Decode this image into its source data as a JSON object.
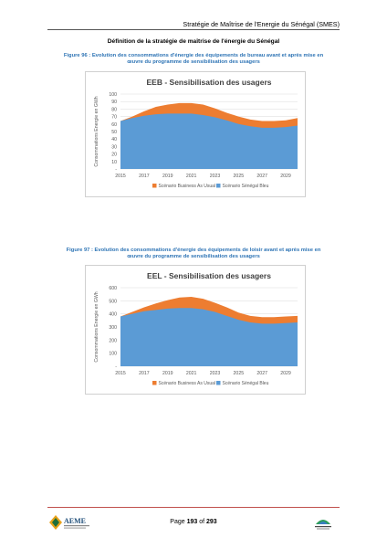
{
  "header": {
    "title": "Stratégie de Maîtrise de l'Energie du Sénégal (SMES)"
  },
  "section_title": "Définition de la stratégie de maîtrise de l'énergie du Sénégal",
  "figures": [
    {
      "caption_line1": "Figure 96 : Evolution des consommations d'énergie des équipements de bureau avant et après mise en",
      "caption_line2": "œuvre du programme de sensibilisation des usagers"
    },
    {
      "caption_line1": "Figure 97 : Evolution des consommations d'énergie des équipements de loisir avant et après mise en",
      "caption_line2": "œuvre du programme de sensibilisation des usagers"
    }
  ],
  "chart_data": [
    {
      "type": "area",
      "title": "EEB - Sensibilisation des usagers",
      "ylabel": "Consommations Energie en GWh",
      "xlabel": "",
      "x": [
        2015,
        2016,
        2017,
        2018,
        2019,
        2020,
        2021,
        2022,
        2023,
        2024,
        2025,
        2026,
        2027,
        2028,
        2029,
        2030
      ],
      "xticks": [
        "2015",
        "2017",
        "2019",
        "2021",
        "2023",
        "2025",
        "2027",
        "2029"
      ],
      "yticks": [
        "-",
        "10",
        "20",
        "30",
        "40",
        "50",
        "60",
        "70",
        "80",
        "90",
        "100"
      ],
      "ylim": [
        0,
        100
      ],
      "grid": true,
      "legend_position": "bottom",
      "series": [
        {
          "name": "Scénario Business As Usual",
          "color": "#ed7d31",
          "values": [
            64,
            70,
            77,
            83,
            86,
            88,
            88,
            86,
            81,
            75,
            70,
            66,
            64,
            64,
            65,
            68
          ]
        },
        {
          "name": "Scénario Sénégal Bleu",
          "color": "#5b9bd5",
          "values": [
            64,
            68,
            71,
            73,
            74,
            74,
            74,
            72,
            69,
            65,
            60,
            57,
            55,
            55,
            56,
            58
          ]
        }
      ]
    },
    {
      "type": "area",
      "title": "EEL - Sensibilisation des usagers",
      "ylabel": "Consommations Energie en GWh",
      "xlabel": "",
      "x": [
        2015,
        2016,
        2017,
        2018,
        2019,
        2020,
        2021,
        2022,
        2023,
        2024,
        2025,
        2026,
        2027,
        2028,
        2029,
        2030
      ],
      "xticks": [
        "2015",
        "2017",
        "2019",
        "2021",
        "2023",
        "2025",
        "2027",
        "2029"
      ],
      "yticks": [
        "-",
        "100",
        "200",
        "300",
        "400",
        "500",
        "600"
      ],
      "ylim": [
        0,
        600
      ],
      "grid": true,
      "legend_position": "bottom",
      "series": [
        {
          "name": "Scénario Business As Usual",
          "color": "#ed7d31",
          "values": [
            380,
            415,
            450,
            480,
            505,
            525,
            530,
            515,
            485,
            450,
            410,
            385,
            375,
            375,
            380,
            385
          ]
        },
        {
          "name": "Scénario Sénégal Bleu",
          "color": "#5b9bd5",
          "values": [
            380,
            400,
            420,
            430,
            440,
            445,
            445,
            435,
            415,
            385,
            355,
            335,
            325,
            325,
            330,
            335
          ]
        }
      ]
    }
  ],
  "footer": {
    "page_prefix": "Page ",
    "page_current": "193",
    "page_sep": " of ",
    "page_total": "293"
  },
  "logos": {
    "left": "AEME",
    "right": "logo"
  }
}
